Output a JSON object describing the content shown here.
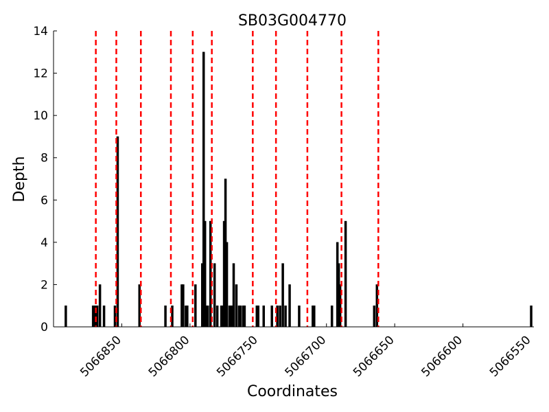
{
  "chart_data": {
    "type": "bar",
    "title": "SB03G004770",
    "xlabel": "Coordinates",
    "ylabel": "Depth",
    "x_reversed": true,
    "xlim": [
      5066900,
      5066548
    ],
    "ylim": [
      0,
      14
    ],
    "yticks": [
      0,
      2,
      4,
      6,
      8,
      10,
      12,
      14
    ],
    "xticks": [
      5066850,
      5066800,
      5066750,
      5066700,
      5066650,
      5066600,
      5066550
    ],
    "bar_color": "#000000",
    "bar_edge_color": "#000000",
    "marker_color": "#ff0000",
    "grid": false,
    "series": [
      {
        "x": [
          5066891,
          5066871,
          5066870,
          5066869,
          5066868,
          5066866,
          5066863,
          5066855,
          5066853,
          5066837,
          5066818,
          5066813,
          5066806,
          5066805,
          5066803,
          5066802,
          5066796,
          5066791,
          5066790,
          5066789,
          5066788,
          5066787,
          5066785,
          5066782,
          5066780,
          5066777,
          5066776,
          5066775,
          5066774,
          5066773,
          5066771,
          5066770,
          5066769,
          5066768,
          5066766,
          5066764,
          5066763,
          5066761,
          5066760,
          5066751,
          5066750,
          5066746,
          5066740,
          5066736,
          5066734,
          5066732,
          5066730,
          5066727,
          5066720,
          5066710,
          5066709,
          5066696,
          5066692,
          5066691,
          5066690,
          5066686,
          5066665,
          5066663,
          5066550
        ],
        "values": [
          1,
          1,
          1,
          1,
          1,
          2,
          1,
          1,
          9,
          2,
          1,
          1,
          2,
          2,
          1,
          1,
          2,
          3,
          13,
          5,
          1,
          1,
          5,
          3,
          1,
          1,
          1,
          5,
          7,
          4,
          1,
          1,
          1,
          3,
          2,
          1,
          1,
          1,
          1,
          1,
          1,
          1,
          1,
          1,
          1,
          3,
          1,
          2,
          1,
          1,
          1,
          1,
          4,
          3,
          2,
          5,
          1,
          2,
          1
        ]
      }
    ],
    "vlines": [
      5066869,
      5066854,
      5066836,
      5066814,
      5066798,
      5066784,
      5066754,
      5066737,
      5066714,
      5066689,
      5066662
    ]
  }
}
